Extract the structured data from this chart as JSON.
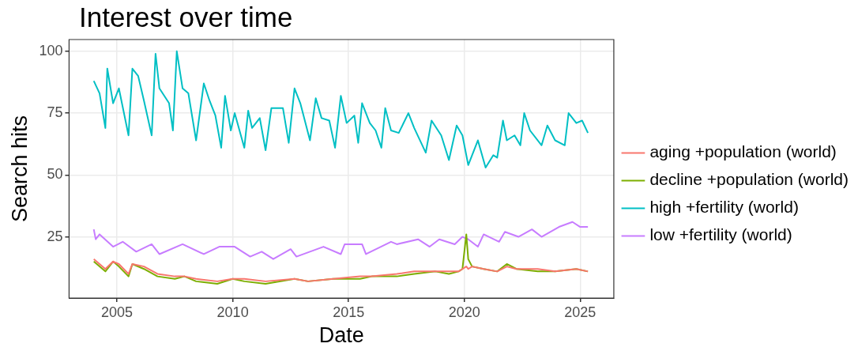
{
  "chart_data": {
    "type": "line",
    "title": "Interest over time",
    "xlabel": "Date",
    "ylabel": "Search hits",
    "xlim": [
      "2002-12-07",
      "2026-06-14"
    ],
    "xticks": [
      {
        "value": "2005-01-01",
        "label": "2005"
      },
      {
        "value": "2010-01-01",
        "label": "2010"
      },
      {
        "value": "2015-01-01",
        "label": "2015"
      },
      {
        "value": "2020-01-01",
        "label": "2020"
      },
      {
        "value": "2025-01-01",
        "label": "2025"
      }
    ],
    "ylim": [
      0.25,
      104.75
    ],
    "yticks": [
      25,
      50,
      75,
      100
    ],
    "grid": true,
    "legend": "right",
    "marker": "none",
    "line_style": "solid",
    "series": [
      {
        "name": "aging +population (world)",
        "color": "#f8766d",
        "x": [
          "2004-01",
          "2004-07",
          "2004-11",
          "2005-02",
          "2005-07",
          "2005-09",
          "2006-03",
          "2006-10",
          "2007-07",
          "2007-12",
          "2008-06",
          "2009-05",
          "2010-01",
          "2010-07",
          "2011-06",
          "2012-09",
          "2013-04",
          "2014-05",
          "2015-07",
          "2016-01",
          "2017-02",
          "2017-11",
          "2018-10",
          "2019-05",
          "2019-10",
          "2019-12",
          "2020-02",
          "2020-03",
          "2020-05",
          "2020-11",
          "2021-06",
          "2021-11",
          "2022-04",
          "2023-03",
          "2023-12",
          "2024-11",
          "2025-05"
        ],
        "values": [
          16,
          12,
          15,
          14,
          10,
          14,
          13,
          10,
          9,
          9,
          8,
          7,
          8,
          8,
          7,
          8,
          7,
          8,
          9,
          9,
          10,
          11,
          11,
          11,
          11,
          12,
          13,
          12,
          13,
          12,
          11,
          13,
          12,
          12,
          11,
          12,
          11
        ]
      },
      {
        "name": "decline +population (world)",
        "color": "#7cae00",
        "x": [
          "2004-01",
          "2004-07",
          "2004-11",
          "2005-02",
          "2005-07",
          "2005-09",
          "2006-03",
          "2006-10",
          "2007-07",
          "2007-12",
          "2008-06",
          "2009-05",
          "2010-01",
          "2010-07",
          "2011-06",
          "2012-09",
          "2013-04",
          "2014-05",
          "2015-07",
          "2016-01",
          "2017-02",
          "2017-11",
          "2018-10",
          "2019-05",
          "2019-10",
          "2019-12",
          "2020-02",
          "2020-03",
          "2020-05",
          "2020-11",
          "2021-06",
          "2021-11",
          "2022-04",
          "2023-03",
          "2023-12",
          "2024-11",
          "2025-05"
        ],
        "values": [
          15,
          11,
          15,
          13,
          9,
          14,
          12,
          9,
          8,
          9,
          7,
          6,
          8,
          7,
          6,
          8,
          7,
          8,
          8,
          9,
          9,
          10,
          11,
          10,
          11,
          12,
          26,
          16,
          13,
          12,
          11,
          14,
          12,
          11,
          11,
          12,
          11
        ]
      },
      {
        "name": "high +fertility (world)",
        "color": "#00bfc4",
        "x": [
          "2004-01",
          "2004-04",
          "2004-07",
          "2004-08",
          "2004-11",
          "2005-02",
          "2005-07",
          "2005-09",
          "2005-12",
          "2006-03",
          "2006-07",
          "2006-09",
          "2006-11",
          "2007-04",
          "2007-06",
          "2007-08",
          "2007-11",
          "2008-02",
          "2008-06",
          "2008-10",
          "2009-01",
          "2009-04",
          "2009-07",
          "2009-09",
          "2009-12",
          "2010-02",
          "2010-07",
          "2010-09",
          "2010-11",
          "2011-03",
          "2011-06",
          "2011-09",
          "2012-03",
          "2012-06",
          "2012-09",
          "2012-12",
          "2013-05",
          "2013-08",
          "2013-11",
          "2014-03",
          "2014-06",
          "2014-09",
          "2014-12",
          "2015-04",
          "2015-06",
          "2015-08",
          "2015-12",
          "2016-03",
          "2016-06",
          "2016-08",
          "2016-11",
          "2017-03",
          "2017-08",
          "2017-11",
          "2018-05",
          "2018-08",
          "2019-01",
          "2019-05",
          "2019-09",
          "2019-12",
          "2020-03",
          "2020-08",
          "2020-12",
          "2021-04",
          "2021-06",
          "2021-09",
          "2021-11",
          "2022-03",
          "2022-06",
          "2022-08",
          "2022-11",
          "2023-05",
          "2023-08",
          "2023-12",
          "2024-05",
          "2024-07",
          "2024-11",
          "2025-02",
          "2025-05"
        ],
        "values": [
          88,
          83,
          69,
          93,
          79,
          85,
          66,
          93,
          90,
          80,
          66,
          99,
          85,
          79,
          68,
          100,
          85,
          83,
          64,
          87,
          80,
          74,
          61,
          82,
          68,
          75,
          61,
          76,
          69,
          73,
          60,
          77,
          77,
          63,
          85,
          79,
          64,
          81,
          73,
          72,
          61,
          82,
          71,
          74,
          63,
          79,
          71,
          68,
          61,
          77,
          68,
          67,
          75,
          69,
          59,
          72,
          66,
          56,
          70,
          66,
          54,
          64,
          53,
          58,
          57,
          72,
          64,
          66,
          62,
          75,
          68,
          62,
          70,
          64,
          62,
          75,
          71,
          72,
          67
        ]
      },
      {
        "name": "low +fertility (world)",
        "color": "#c77cff",
        "x": [
          "2004-01",
          "2004-02",
          "2004-04",
          "2004-11",
          "2005-04",
          "2005-11",
          "2006-07",
          "2006-11",
          "2007-11",
          "2008-10",
          "2009-06",
          "2010-02",
          "2010-10",
          "2011-04",
          "2011-10",
          "2012-07",
          "2012-10",
          "2013-12",
          "2014-09",
          "2014-11",
          "2015-08",
          "2015-10",
          "2016-11",
          "2017-02",
          "2018-01",
          "2018-07",
          "2018-12",
          "2019-08",
          "2019-12",
          "2020-03",
          "2020-08",
          "2020-11",
          "2021-07",
          "2021-10",
          "2022-05",
          "2022-12",
          "2023-05",
          "2024-02",
          "2024-09",
          "2025-01",
          "2025-05"
        ],
        "values": [
          28,
          24,
          26,
          21,
          23,
          19,
          22,
          18,
          22,
          18,
          21,
          21,
          17,
          19,
          16,
          20,
          17,
          21,
          18,
          22,
          22,
          18,
          23,
          22,
          24,
          21,
          24,
          22,
          25,
          24,
          21,
          26,
          23,
          27,
          25,
          28,
          25,
          29,
          31,
          29,
          29
        ]
      }
    ]
  }
}
